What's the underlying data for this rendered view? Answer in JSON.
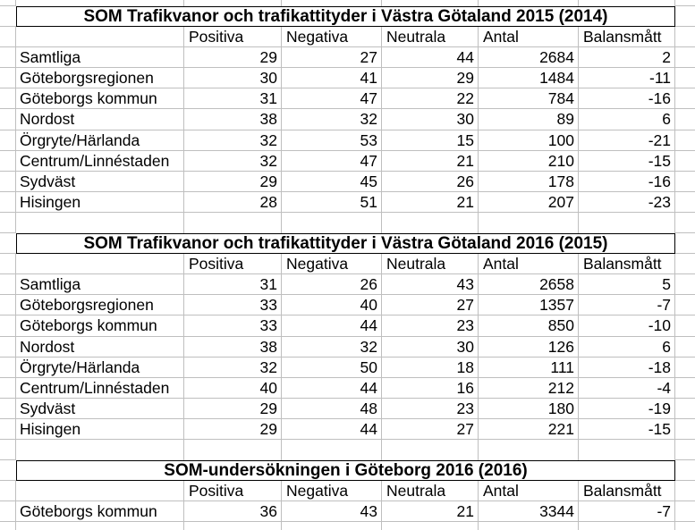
{
  "app": {
    "name": "spreadsheet-grid"
  },
  "columns": [
    "Positiva",
    "Negativa",
    "Neutrala",
    "Antal",
    "Balansmått"
  ],
  "tables": [
    {
      "title": "SOM Trafikvanor och trafikattityder i Västra Götaland 2015 (2014)",
      "rows": [
        {
          "label": "Samtliga",
          "values": [
            "29",
            "27",
            "44",
            "2684",
            "2"
          ]
        },
        {
          "label": "Göteborgsregionen",
          "values": [
            "30",
            "41",
            "29",
            "1484",
            "-11"
          ]
        },
        {
          "label": "Göteborgs kommun",
          "values": [
            "31",
            "47",
            "22",
            "784",
            "-16"
          ]
        },
        {
          "label": "Nordost",
          "values": [
            "38",
            "32",
            "30",
            "89",
            "6"
          ]
        },
        {
          "label": "Örgryte/Härlanda",
          "values": [
            "32",
            "53",
            "15",
            "100",
            "-21"
          ]
        },
        {
          "label": "Centrum/Linnéstaden",
          "values": [
            "32",
            "47",
            "21",
            "210",
            "-15"
          ]
        },
        {
          "label": "Sydväst",
          "values": [
            "29",
            "45",
            "26",
            "178",
            "-16"
          ]
        },
        {
          "label": "Hisingen",
          "values": [
            "28",
            "51",
            "21",
            "207",
            "-23"
          ]
        }
      ]
    },
    {
      "title": "SOM Trafikvanor och trafikattityder i Västra Götaland 2016 (2015)",
      "rows": [
        {
          "label": "Samtliga",
          "values": [
            "31",
            "26",
            "43",
            "2658",
            "5"
          ]
        },
        {
          "label": "Göteborgsregionen",
          "values": [
            "33",
            "40",
            "27",
            "1357",
            "-7"
          ]
        },
        {
          "label": "Göteborgs kommun",
          "values": [
            "33",
            "44",
            "23",
            "850",
            "-10"
          ]
        },
        {
          "label": "Nordost",
          "values": [
            "38",
            "32",
            "30",
            "126",
            "6"
          ]
        },
        {
          "label": "Örgryte/Härlanda",
          "values": [
            "32",
            "50",
            "18",
            "111",
            "-18"
          ]
        },
        {
          "label": "Centrum/Linnéstaden",
          "values": [
            "40",
            "44",
            "16",
            "212",
            "-4"
          ]
        },
        {
          "label": "Sydväst",
          "values": [
            "29",
            "48",
            "23",
            "180",
            "-19"
          ]
        },
        {
          "label": "Hisingen",
          "values": [
            "29",
            "44",
            "27",
            "221",
            "-15"
          ]
        }
      ]
    },
    {
      "title": "SOM-undersökningen i Göteborg 2016 (2016)",
      "rows": [
        {
          "label": "Göteborgs kommun",
          "values": [
            "36",
            "43",
            "21",
            "3344",
            "-7"
          ]
        }
      ]
    }
  ],
  "colors": {
    "background": "#ffffff",
    "gridline": "#bfbfbf",
    "title_border": "#000000",
    "text": "#000000"
  }
}
